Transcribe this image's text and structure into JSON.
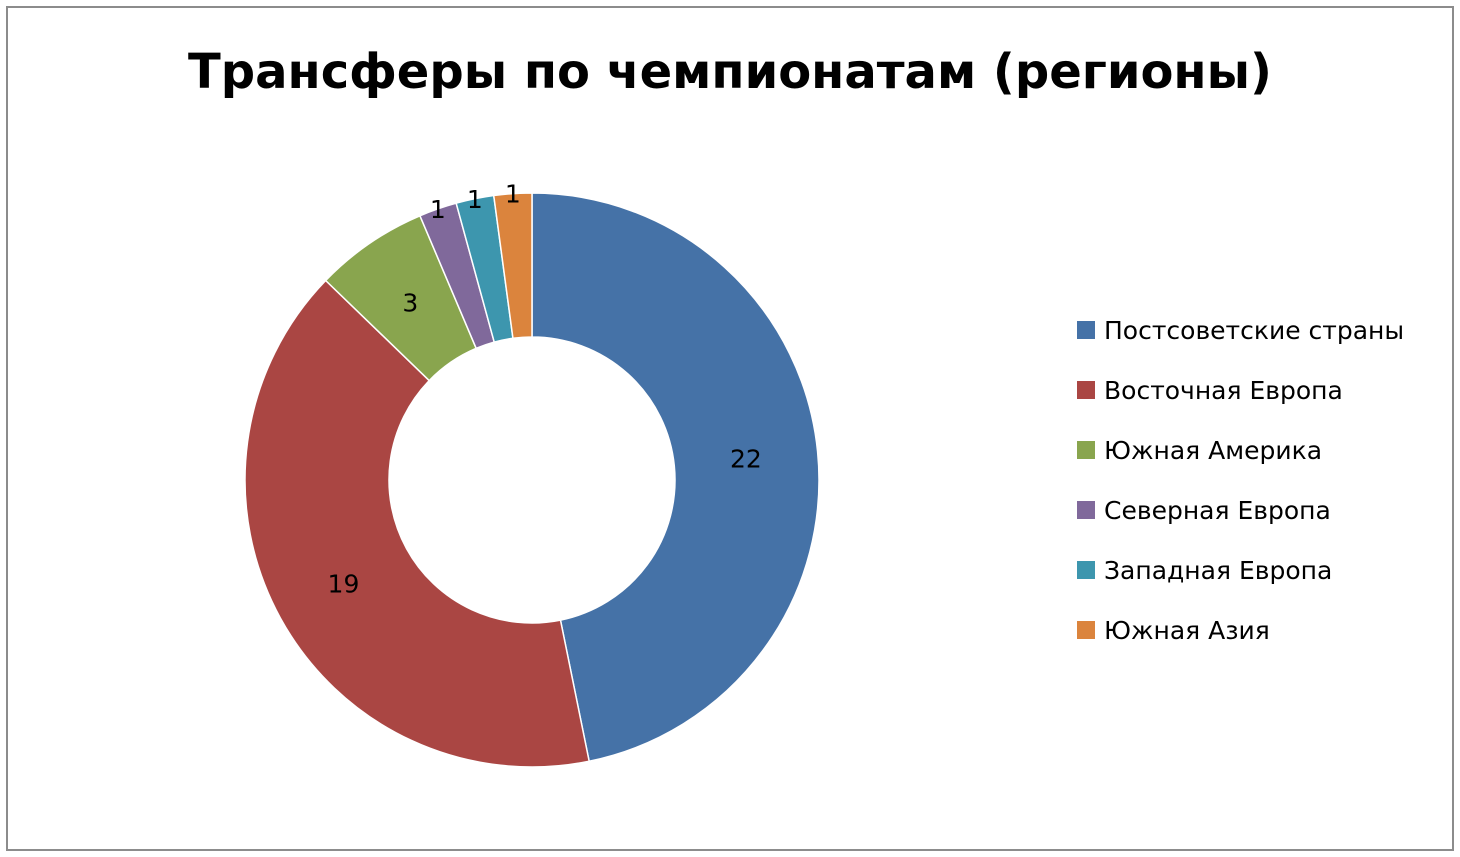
{
  "chart_data": {
    "type": "pie",
    "variant": "donut",
    "title": "Трансферы по чемпионатам (регионы)",
    "categories": [
      "Постсоветские страны",
      "Восточная Европа",
      "Южная Америка",
      "Северная Европа",
      "Западная Европа",
      "Южная Азия"
    ],
    "values": [
      22,
      19,
      3,
      1,
      1,
      1
    ],
    "colors": [
      "#4572A7",
      "#AA4643",
      "#89A54E",
      "#80699B",
      "#3D96AE",
      "#DB843D"
    ],
    "data_labels": [
      "22",
      "19",
      "3",
      "1",
      "1",
      "1"
    ],
    "legend_position": "right"
  }
}
